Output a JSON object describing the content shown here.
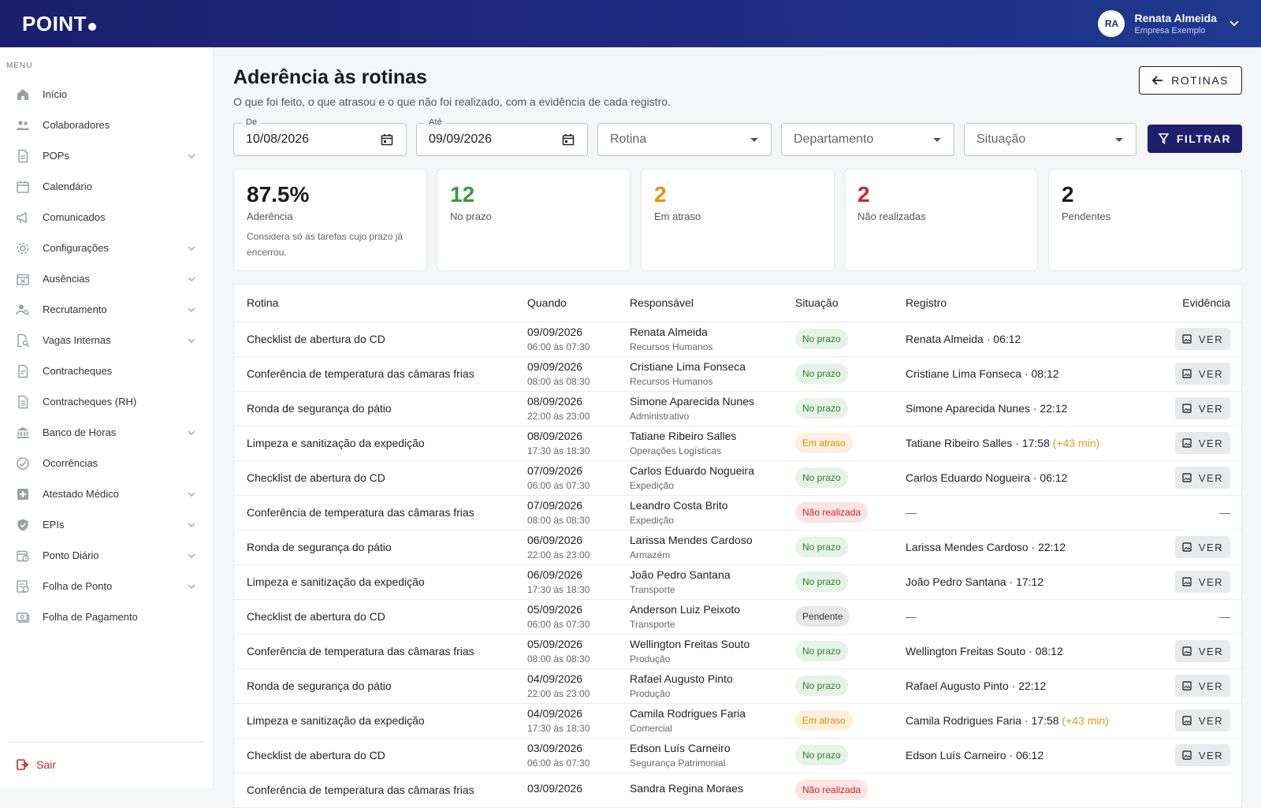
{
  "header": {
    "logo": "POINT",
    "user_initials": "RA",
    "user_name": "Renata Almeida",
    "user_company": "Empresa Exemplo"
  },
  "sidebar": {
    "menu_label": "MENU",
    "items": [
      {
        "label": "Início",
        "icon": "home-icon",
        "expandable": false
      },
      {
        "label": "Colaboradores",
        "icon": "people-icon",
        "expandable": false
      },
      {
        "label": "POPs",
        "icon": "document-icon",
        "expandable": true
      },
      {
        "label": "Calendário",
        "icon": "calendar-icon",
        "expandable": false
      },
      {
        "label": "Comunicados",
        "icon": "megaphone-icon",
        "expandable": false
      },
      {
        "label": "Configurações",
        "icon": "gear-icon",
        "expandable": true
      },
      {
        "label": "Ausências",
        "icon": "calendar-x-icon",
        "expandable": true
      },
      {
        "label": "Recrutamento",
        "icon": "person-search-icon",
        "expandable": true
      },
      {
        "label": "Vagas Internas",
        "icon": "search-document-icon",
        "expandable": true
      },
      {
        "label": "Contracheques",
        "icon": "receipt-icon",
        "expandable": false
      },
      {
        "label": "Contracheques (RH)",
        "icon": "receipt-list-icon",
        "expandable": false
      },
      {
        "label": "Banco de Horas",
        "icon": "bank-icon",
        "expandable": true
      },
      {
        "label": "Ocorrências",
        "icon": "check-circle-icon",
        "expandable": false
      },
      {
        "label": "Atestado Médico",
        "icon": "medical-icon",
        "expandable": true
      },
      {
        "label": "EPIs",
        "icon": "shield-icon",
        "expandable": true
      },
      {
        "label": "Ponto Diário",
        "icon": "calendar-clock-icon",
        "expandable": true
      },
      {
        "label": "Folha de Ponto",
        "icon": "timesheet-icon",
        "expandable": true
      },
      {
        "label": "Folha de Pagamento",
        "icon": "money-icon",
        "expandable": false
      }
    ],
    "logout_label": "Sair"
  },
  "page": {
    "title": "Aderência às rotinas",
    "subtitle": "O que foi feito, o que atrasou e o que não foi realizado, com a evidência de cada registro.",
    "back_button": "ROTINAS"
  },
  "filters": {
    "from_label": "De",
    "from_value": "10/08/2026",
    "to_label": "Até",
    "to_value": "09/09/2026",
    "routine_placeholder": "Rotina",
    "department_placeholder": "Departamento",
    "status_placeholder": "Situação",
    "filter_button": "FILTRAR"
  },
  "stats": [
    {
      "value": "87.5%",
      "label": "Aderência",
      "note": "Considera só as tarefas cujo prazo já encerrou.",
      "color": "#1c1c1c"
    },
    {
      "value": "12",
      "label": "No prazo",
      "note": "",
      "color": "#3a9a3e"
    },
    {
      "value": "2",
      "label": "Em atraso",
      "note": "",
      "color": "#e8900c"
    },
    {
      "value": "2",
      "label": "Não realizadas",
      "note": "",
      "color": "#c62828"
    },
    {
      "value": "2",
      "label": "Pendentes",
      "note": "",
      "color": "#1c1c1c"
    }
  ],
  "table": {
    "headers": {
      "rotina": "Rotina",
      "quando": "Quando",
      "responsavel": "Responsável",
      "situacao": "Situação",
      "registro": "Registro",
      "evidencia": "Evidência"
    },
    "ver_label": "VER",
    "rows": [
      {
        "rotina": "Checklist de abertura do CD",
        "data": "09/09/2026",
        "hora": "06:00 às 07:30",
        "nome": "Renata Almeida",
        "depto": "Recursos Humanos",
        "situacao": "No prazo",
        "status": "ok",
        "registro": "Renata Almeida · 06:12",
        "extra": "",
        "ver": true
      },
      {
        "rotina": "Conferência de temperatura das câmaras frias",
        "data": "09/09/2026",
        "hora": "08:00 às 08:30",
        "nome": "Cristiane Lima Fonseca",
        "depto": "Recursos Humanos",
        "situacao": "No prazo",
        "status": "ok",
        "registro": "Cristiane Lima Fonseca · 08:12",
        "extra": "",
        "ver": true
      },
      {
        "rotina": "Ronda de segurança do pátio",
        "data": "08/09/2026",
        "hora": "22:00 às 23:00",
        "nome": "Simone Aparecida Nunes",
        "depto": "Administrativo",
        "situacao": "No prazo",
        "status": "ok",
        "registro": "Simone Aparecida Nunes · 22:12",
        "extra": "",
        "ver": true
      },
      {
        "rotina": "Limpeza e sanitização da expedição",
        "data": "08/09/2026",
        "hora": "17:30 às 18:30",
        "nome": "Tatiane Ribeiro Salles",
        "depto": "Operações Logísticas",
        "situacao": "Em atraso",
        "status": "late",
        "registro": "Tatiane Ribeiro Salles · 17:58",
        "extra": "(+43 min)",
        "ver": true
      },
      {
        "rotina": "Checklist de abertura do CD",
        "data": "07/09/2026",
        "hora": "06:00 às 07:30",
        "nome": "Carlos Eduardo Nogueira",
        "depto": "Expedição",
        "situacao": "No prazo",
        "status": "ok",
        "registro": "Carlos Eduardo Nogueira · 06:12",
        "extra": "",
        "ver": true
      },
      {
        "rotina": "Conferência de temperatura das câmaras frias",
        "data": "07/09/2026",
        "hora": "08:00 às 08:30",
        "nome": "Leandro Costa Brito",
        "depto": "Expedição",
        "situacao": "Não realizada",
        "status": "miss",
        "registro": "—",
        "extra": "",
        "ver": false
      },
      {
        "rotina": "Ronda de segurança do pátio",
        "data": "06/09/2026",
        "hora": "22:00 às 23:00",
        "nome": "Larissa Mendes Cardoso",
        "depto": "Armazém",
        "situacao": "No prazo",
        "status": "ok",
        "registro": "Larissa Mendes Cardoso · 22:12",
        "extra": "",
        "ver": true
      },
      {
        "rotina": "Limpeza e sanitização da expedição",
        "data": "06/09/2026",
        "hora": "17:30 às 18:30",
        "nome": "João Pedro Santana",
        "depto": "Transporte",
        "situacao": "No prazo",
        "status": "ok",
        "registro": "João Pedro Santana · 17:12",
        "extra": "",
        "ver": true
      },
      {
        "rotina": "Checklist de abertura do CD",
        "data": "05/09/2026",
        "hora": "06:00 às 07:30",
        "nome": "Anderson Luiz Peixoto",
        "depto": "Transporte",
        "situacao": "Pendente",
        "status": "pend",
        "registro": "—",
        "extra": "",
        "ver": false
      },
      {
        "rotina": "Conferência de temperatura das câmaras frias",
        "data": "05/09/2026",
        "hora": "08:00 às 08:30",
        "nome": "Wellington Freitas Souto",
        "depto": "Produção",
        "situacao": "No prazo",
        "status": "ok",
        "registro": "Wellington Freitas Souto · 08:12",
        "extra": "",
        "ver": true
      },
      {
        "rotina": "Ronda de segurança do pátio",
        "data": "04/09/2026",
        "hora": "22:00 às 23:00",
        "nome": "Rafael Augusto Pinto",
        "depto": "Produção",
        "situacao": "No prazo",
        "status": "ok",
        "registro": "Rafael Augusto Pinto · 22:12",
        "extra": "",
        "ver": true
      },
      {
        "rotina": "Limpeza e sanitização da expedição",
        "data": "04/09/2026",
        "hora": "17:30 às 18:30",
        "nome": "Camila Rodrigues Faria",
        "depto": "Comercial",
        "situacao": "Em atraso",
        "status": "late",
        "registro": "Camila Rodrigues Faria · 17:58",
        "extra": "(+43 min)",
        "ver": true
      },
      {
        "rotina": "Checklist de abertura do CD",
        "data": "03/09/2026",
        "hora": "06:00 às 07:30",
        "nome": "Edson Luís Carneiro",
        "depto": "Segurança Patrimonial",
        "situacao": "No prazo",
        "status": "ok",
        "registro": "Edson Luís Carneiro · 06:12",
        "extra": "",
        "ver": true
      },
      {
        "rotina": "Conferência de temperatura das câmaras frias",
        "data": "03/09/2026",
        "hora": "",
        "nome": "Sandra Regina Moraes",
        "depto": "",
        "situacao": "Não realizada",
        "status": "miss",
        "registro": "",
        "extra": "",
        "ver": false
      }
    ]
  }
}
